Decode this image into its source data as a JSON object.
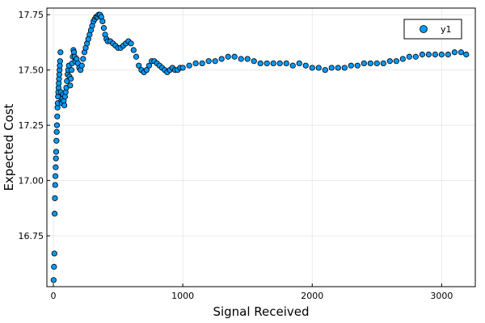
{
  "chart_data": {
    "type": "scatter",
    "title": "",
    "xlabel": "Signal Received",
    "ylabel": "Expected Cost",
    "xlim": [
      -50,
      3260
    ],
    "ylim": [
      16.52,
      17.78
    ],
    "xticks": [
      0,
      1000,
      2000,
      3000
    ],
    "xtick_labels": [
      "0",
      "1000",
      "2000",
      "3000"
    ],
    "yticks": [
      16.75,
      17.0,
      17.25,
      17.5,
      17.75
    ],
    "ytick_labels": [
      "16.75",
      "17.00",
      "17.25",
      "17.50",
      "17.75"
    ],
    "grid": true,
    "legend_position": "top-right",
    "marker_color": "#009AFA",
    "marker_edge_color": "#000000",
    "series": [
      {
        "name": "y1",
        "points": [
          [
            2,
            16.55
          ],
          [
            5,
            16.61
          ],
          [
            8,
            16.67
          ],
          [
            10,
            16.85
          ],
          [
            12,
            16.92
          ],
          [
            14,
            16.98
          ],
          [
            16,
            17.02
          ],
          [
            18,
            17.06
          ],
          [
            20,
            17.1
          ],
          [
            22,
            17.13
          ],
          [
            24,
            17.18
          ],
          [
            26,
            17.22
          ],
          [
            28,
            17.25
          ],
          [
            30,
            17.29
          ],
          [
            32,
            17.33
          ],
          [
            34,
            17.35
          ],
          [
            36,
            17.38
          ],
          [
            38,
            17.4
          ],
          [
            40,
            17.42
          ],
          [
            42,
            17.44
          ],
          [
            44,
            17.46
          ],
          [
            46,
            17.48
          ],
          [
            48,
            17.5
          ],
          [
            50,
            17.52
          ],
          [
            52,
            17.54
          ],
          [
            55,
            17.58
          ],
          [
            58,
            17.4
          ],
          [
            62,
            17.36
          ],
          [
            66,
            17.35
          ],
          [
            70,
            17.37
          ],
          [
            75,
            17.39
          ],
          [
            80,
            17.36
          ],
          [
            85,
            17.34
          ],
          [
            90,
            17.38
          ],
          [
            95,
            17.4
          ],
          [
            100,
            17.42
          ],
          [
            105,
            17.45
          ],
          [
            110,
            17.48
          ],
          [
            115,
            17.5
          ],
          [
            120,
            17.52
          ],
          [
            125,
            17.47
          ],
          [
            130,
            17.43
          ],
          [
            135,
            17.46
          ],
          [
            140,
            17.5
          ],
          [
            145,
            17.53
          ],
          [
            150,
            17.56
          ],
          [
            155,
            17.59
          ],
          [
            160,
            17.58
          ],
          [
            165,
            17.56
          ],
          [
            170,
            17.54
          ],
          [
            180,
            17.55
          ],
          [
            190,
            17.53
          ],
          [
            200,
            17.51
          ],
          [
            210,
            17.5
          ],
          [
            220,
            17.52
          ],
          [
            230,
            17.55
          ],
          [
            240,
            17.58
          ],
          [
            250,
            17.6
          ],
          [
            260,
            17.62
          ],
          [
            270,
            17.64
          ],
          [
            280,
            17.66
          ],
          [
            290,
            17.68
          ],
          [
            300,
            17.7
          ],
          [
            310,
            17.72
          ],
          [
            320,
            17.73
          ],
          [
            330,
            17.74
          ],
          [
            340,
            17.74
          ],
          [
            350,
            17.75
          ],
          [
            360,
            17.75
          ],
          [
            370,
            17.74
          ],
          [
            380,
            17.72
          ],
          [
            390,
            17.69
          ],
          [
            400,
            17.66
          ],
          [
            410,
            17.64
          ],
          [
            420,
            17.63
          ],
          [
            440,
            17.63
          ],
          [
            460,
            17.62
          ],
          [
            480,
            17.61
          ],
          [
            500,
            17.6
          ],
          [
            520,
            17.6
          ],
          [
            540,
            17.61
          ],
          [
            560,
            17.62
          ],
          [
            580,
            17.63
          ],
          [
            600,
            17.62
          ],
          [
            620,
            17.59
          ],
          [
            640,
            17.56
          ],
          [
            660,
            17.52
          ],
          [
            680,
            17.5
          ],
          [
            700,
            17.49
          ],
          [
            720,
            17.5
          ],
          [
            740,
            17.52
          ],
          [
            760,
            17.54
          ],
          [
            780,
            17.54
          ],
          [
            800,
            17.53
          ],
          [
            820,
            17.52
          ],
          [
            840,
            17.51
          ],
          [
            860,
            17.5
          ],
          [
            880,
            17.49
          ],
          [
            900,
            17.5
          ],
          [
            920,
            17.51
          ],
          [
            940,
            17.5
          ],
          [
            960,
            17.5
          ],
          [
            980,
            17.51
          ],
          [
            1000,
            17.51
          ],
          [
            1050,
            17.52
          ],
          [
            1100,
            17.53
          ],
          [
            1150,
            17.53
          ],
          [
            1200,
            17.54
          ],
          [
            1250,
            17.54
          ],
          [
            1300,
            17.55
          ],
          [
            1350,
            17.56
          ],
          [
            1400,
            17.56
          ],
          [
            1450,
            17.55
          ],
          [
            1500,
            17.55
          ],
          [
            1550,
            17.54
          ],
          [
            1600,
            17.53
          ],
          [
            1650,
            17.53
          ],
          [
            1700,
            17.53
          ],
          [
            1750,
            17.53
          ],
          [
            1800,
            17.53
          ],
          [
            1850,
            17.52
          ],
          [
            1900,
            17.53
          ],
          [
            1950,
            17.52
          ],
          [
            2000,
            17.51
          ],
          [
            2050,
            17.51
          ],
          [
            2100,
            17.5
          ],
          [
            2150,
            17.51
          ],
          [
            2200,
            17.51
          ],
          [
            2250,
            17.51
          ],
          [
            2300,
            17.52
          ],
          [
            2350,
            17.52
          ],
          [
            2400,
            17.53
          ],
          [
            2450,
            17.53
          ],
          [
            2500,
            17.53
          ],
          [
            2550,
            17.53
          ],
          [
            2600,
            17.54
          ],
          [
            2650,
            17.54
          ],
          [
            2700,
            17.55
          ],
          [
            2750,
            17.56
          ],
          [
            2800,
            17.56
          ],
          [
            2850,
            17.57
          ],
          [
            2900,
            17.57
          ],
          [
            2950,
            17.57
          ],
          [
            3000,
            17.57
          ],
          [
            3050,
            17.57
          ],
          [
            3100,
            17.58
          ],
          [
            3150,
            17.58
          ],
          [
            3190,
            17.57
          ]
        ]
      }
    ]
  }
}
